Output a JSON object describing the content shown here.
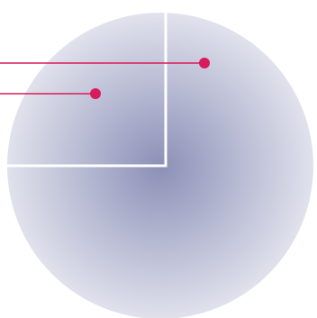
{
  "diagram": {
    "colors": {
      "sphere_center": "#8c90b6",
      "sphere_mid": "#b3b6d0",
      "sphere_edge": "#e3e4ee",
      "frame": "#ffffff",
      "callout": "#d81b5b",
      "background": "#ffffff"
    }
  }
}
